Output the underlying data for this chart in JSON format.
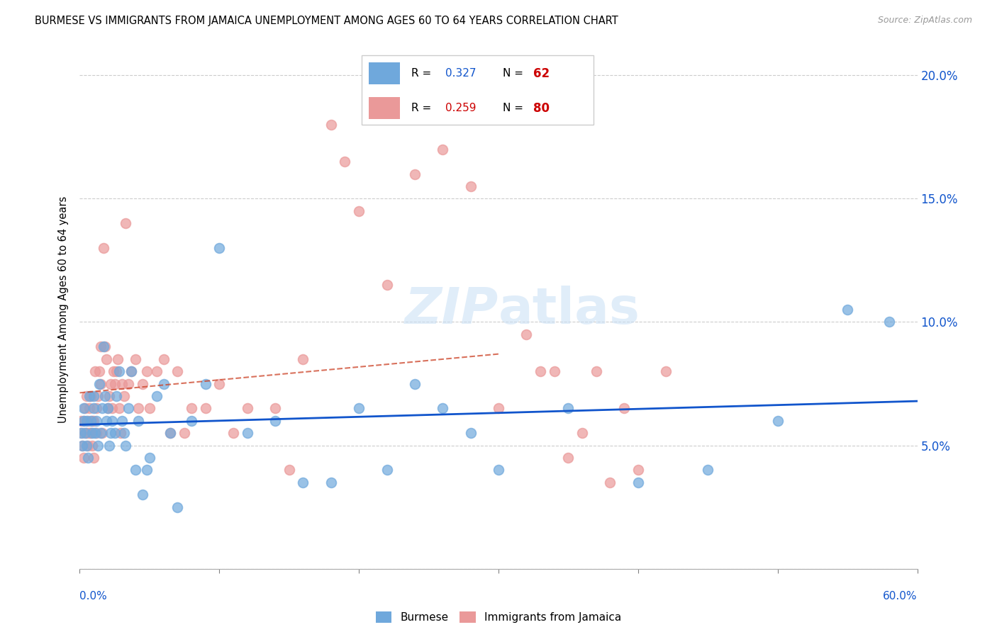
{
  "title": "BURMESE VS IMMIGRANTS FROM JAMAICA UNEMPLOYMENT AMONG AGES 60 TO 64 YEARS CORRELATION CHART",
  "source": "Source: ZipAtlas.com",
  "ylabel": "Unemployment Among Ages 60 to 64 years",
  "legend_burmese_R": "0.327",
  "legend_burmese_N": "62",
  "legend_jamaica_R": "0.259",
  "legend_jamaica_N": "80",
  "yticks": [
    0.0,
    0.05,
    0.1,
    0.15,
    0.2
  ],
  "ytick_labels": [
    "",
    "5.0%",
    "10.0%",
    "15.0%",
    "20.0%"
  ],
  "xlim": [
    0.0,
    0.6
  ],
  "ylim": [
    0.0,
    0.21
  ],
  "burmese_color": "#6fa8dc",
  "jamaica_color": "#ea9999",
  "burmese_line_color": "#1155cc",
  "jamaica_line_color": "#cc4125",
  "watermark_color": "#c8dff5",
  "burmese_x": [
    0.001,
    0.002,
    0.003,
    0.003,
    0.004,
    0.005,
    0.005,
    0.006,
    0.007,
    0.008,
    0.009,
    0.01,
    0.01,
    0.011,
    0.012,
    0.013,
    0.014,
    0.015,
    0.016,
    0.017,
    0.018,
    0.019,
    0.02,
    0.021,
    0.022,
    0.023,
    0.025,
    0.026,
    0.028,
    0.03,
    0.032,
    0.033,
    0.035,
    0.037,
    0.04,
    0.042,
    0.045,
    0.048,
    0.05,
    0.055,
    0.06,
    0.065,
    0.07,
    0.08,
    0.09,
    0.1,
    0.12,
    0.14,
    0.16,
    0.18,
    0.2,
    0.22,
    0.24,
    0.26,
    0.28,
    0.3,
    0.35,
    0.4,
    0.45,
    0.5,
    0.55,
    0.58
  ],
  "burmese_y": [
    0.055,
    0.05,
    0.06,
    0.065,
    0.055,
    0.05,
    0.06,
    0.045,
    0.07,
    0.06,
    0.055,
    0.065,
    0.07,
    0.055,
    0.06,
    0.05,
    0.075,
    0.055,
    0.065,
    0.09,
    0.07,
    0.06,
    0.065,
    0.05,
    0.055,
    0.06,
    0.055,
    0.07,
    0.08,
    0.06,
    0.055,
    0.05,
    0.065,
    0.08,
    0.04,
    0.06,
    0.03,
    0.04,
    0.045,
    0.07,
    0.075,
    0.055,
    0.025,
    0.06,
    0.075,
    0.13,
    0.055,
    0.06,
    0.035,
    0.035,
    0.065,
    0.04,
    0.075,
    0.065,
    0.055,
    0.04,
    0.065,
    0.035,
    0.04,
    0.06,
    0.105,
    0.1
  ],
  "jamaica_x": [
    0.001,
    0.002,
    0.002,
    0.003,
    0.003,
    0.004,
    0.005,
    0.005,
    0.006,
    0.006,
    0.007,
    0.007,
    0.008,
    0.008,
    0.009,
    0.009,
    0.01,
    0.01,
    0.011,
    0.012,
    0.012,
    0.013,
    0.014,
    0.015,
    0.015,
    0.016,
    0.017,
    0.018,
    0.019,
    0.02,
    0.021,
    0.022,
    0.023,
    0.024,
    0.025,
    0.026,
    0.027,
    0.028,
    0.029,
    0.03,
    0.032,
    0.033,
    0.035,
    0.037,
    0.04,
    0.042,
    0.045,
    0.048,
    0.05,
    0.055,
    0.06,
    0.065,
    0.07,
    0.075,
    0.08,
    0.09,
    0.1,
    0.11,
    0.12,
    0.14,
    0.15,
    0.16,
    0.18,
    0.19,
    0.2,
    0.22,
    0.24,
    0.26,
    0.28,
    0.3,
    0.32,
    0.33,
    0.34,
    0.35,
    0.36,
    0.37,
    0.38,
    0.39,
    0.4,
    0.42
  ],
  "jamaica_y": [
    0.06,
    0.05,
    0.055,
    0.045,
    0.06,
    0.065,
    0.055,
    0.07,
    0.05,
    0.06,
    0.055,
    0.065,
    0.07,
    0.055,
    0.06,
    0.05,
    0.045,
    0.06,
    0.08,
    0.055,
    0.065,
    0.07,
    0.08,
    0.075,
    0.09,
    0.055,
    0.13,
    0.09,
    0.085,
    0.065,
    0.07,
    0.075,
    0.065,
    0.08,
    0.075,
    0.08,
    0.085,
    0.065,
    0.055,
    0.075,
    0.07,
    0.14,
    0.075,
    0.08,
    0.085,
    0.065,
    0.075,
    0.08,
    0.065,
    0.08,
    0.085,
    0.055,
    0.08,
    0.055,
    0.065,
    0.065,
    0.075,
    0.055,
    0.065,
    0.065,
    0.04,
    0.085,
    0.18,
    0.165,
    0.145,
    0.115,
    0.16,
    0.17,
    0.155,
    0.065,
    0.095,
    0.08,
    0.08,
    0.045,
    0.055,
    0.08,
    0.035,
    0.065,
    0.04,
    0.08
  ]
}
